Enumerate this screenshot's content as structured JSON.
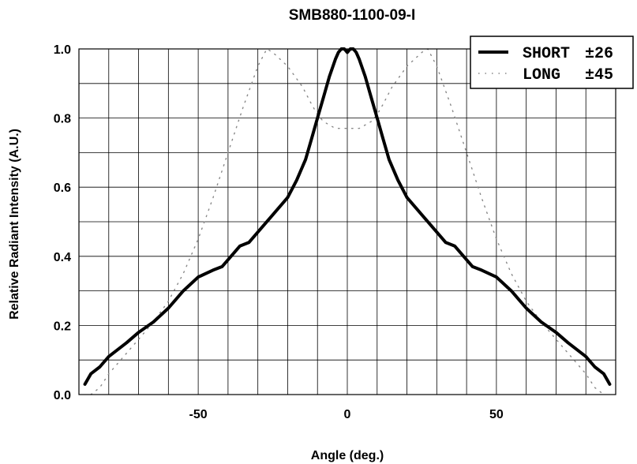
{
  "chart_data": {
    "type": "line",
    "title": "SMB880-1100-09-I",
    "xlabel": "Angle (deg.)",
    "ylabel": "Relative Radiant Intensity (A.U.)",
    "xlim": [
      -90,
      90
    ],
    "ylim": [
      0,
      1.0
    ],
    "x_ticks": [
      -50,
      0,
      50
    ],
    "x_tick_labels": [
      "-50",
      "0",
      "50"
    ],
    "y_ticks": [
      0.0,
      0.2,
      0.4,
      0.6,
      0.8,
      1.0
    ],
    "y_tick_labels": [
      "0.0",
      "0.2",
      "0.4",
      "0.6",
      "0.8",
      "1.0"
    ],
    "grid": true,
    "legend_position": "top-right",
    "series": [
      {
        "name": "SHORT",
        "legend_value": "±26",
        "color": "#000000",
        "style": "solid",
        "x": [
          -88,
          -86,
          -83,
          -80,
          -77,
          -74,
          -70,
          -65,
          -60,
          -55,
          -50,
          -45,
          -42,
          -40,
          -36,
          -33,
          -30,
          -25,
          -20,
          -17,
          -14,
          -12,
          -10,
          -8,
          -6,
          -4,
          -3,
          -2,
          -1,
          0,
          1,
          2,
          3,
          4,
          6,
          8,
          10,
          12,
          14,
          17,
          20,
          25,
          30,
          33,
          36,
          40,
          42,
          45,
          50,
          55,
          60,
          65,
          70,
          74,
          77,
          80,
          83,
          86,
          88
        ],
        "y": [
          0.03,
          0.06,
          0.08,
          0.11,
          0.13,
          0.15,
          0.18,
          0.21,
          0.25,
          0.3,
          0.34,
          0.36,
          0.37,
          0.39,
          0.43,
          0.44,
          0.47,
          0.52,
          0.57,
          0.62,
          0.68,
          0.74,
          0.8,
          0.86,
          0.92,
          0.97,
          0.99,
          1.0,
          1.0,
          0.99,
          1.0,
          1.0,
          0.99,
          0.97,
          0.92,
          0.86,
          0.8,
          0.74,
          0.68,
          0.62,
          0.57,
          0.52,
          0.47,
          0.44,
          0.43,
          0.39,
          0.37,
          0.36,
          0.34,
          0.3,
          0.25,
          0.21,
          0.18,
          0.15,
          0.13,
          0.11,
          0.08,
          0.06,
          0.03
        ]
      },
      {
        "name": "LONG",
        "legend_value": "±45",
        "color": "#888888",
        "style": "dotted",
        "x": [
          -86,
          -83,
          -80,
          -75,
          -70,
          -65,
          -60,
          -55,
          -50,
          -45,
          -40,
          -35,
          -30,
          -27,
          -25,
          -20,
          -15,
          -12,
          -10,
          -8,
          -6,
          -4,
          -2,
          0,
          2,
          4,
          6,
          8,
          10,
          12,
          15,
          20,
          25,
          27,
          30,
          35,
          40,
          45,
          50,
          55,
          60,
          65,
          70,
          75,
          80,
          83,
          86
        ],
        "y": [
          0.0,
          0.02,
          0.06,
          0.11,
          0.16,
          0.21,
          0.27,
          0.35,
          0.45,
          0.57,
          0.7,
          0.83,
          0.95,
          1.0,
          0.99,
          0.95,
          0.89,
          0.84,
          0.81,
          0.79,
          0.78,
          0.77,
          0.77,
          0.77,
          0.77,
          0.77,
          0.78,
          0.79,
          0.81,
          0.84,
          0.89,
          0.95,
          0.99,
          1.0,
          0.95,
          0.83,
          0.7,
          0.57,
          0.45,
          0.35,
          0.27,
          0.21,
          0.16,
          0.11,
          0.06,
          0.02,
          0.0
        ]
      }
    ]
  }
}
